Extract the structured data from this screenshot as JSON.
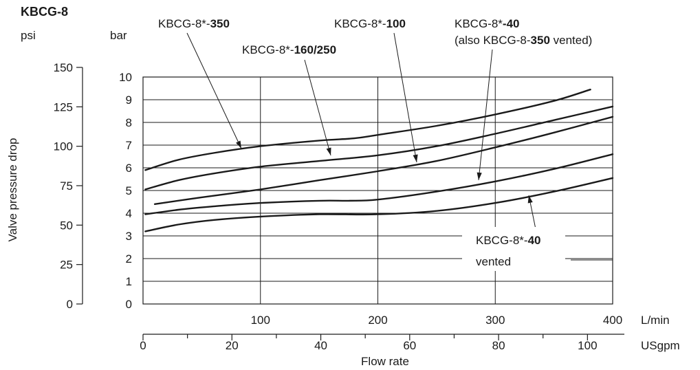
{
  "chart_data": {
    "type": "line",
    "title": "KBCG-8",
    "psi_unit": "psi",
    "bar_unit": "bar",
    "ylabel": "Valve pressure drop",
    "xlabel": "Flow rate",
    "lpm_unit": "L/min",
    "usgpm_unit": "USgpm",
    "xlim_lpm": [
      0,
      400
    ],
    "ylim_bar": [
      0,
      10
    ],
    "usgpm_max": 105.67,
    "grid": true,
    "bar_ticks": [
      "0",
      "1",
      "2",
      "3",
      "4",
      "5",
      "6",
      "7",
      "8",
      "9",
      "10"
    ],
    "psi_ticks": [
      {
        "label": "0",
        "value": 0
      },
      {
        "label": "25",
        "value": 25
      },
      {
        "label": "50",
        "value": 50
      },
      {
        "label": "75",
        "value": 75
      },
      {
        "label": "100",
        "value": 100
      },
      {
        "label": "125",
        "value": 125
      },
      {
        "label": "150",
        "value": 150
      }
    ],
    "lpm_ticks": [
      {
        "label": "100",
        "value": 100
      },
      {
        "label": "200",
        "value": 200
      },
      {
        "label": "300",
        "value": 300
      },
      {
        "label": "400",
        "value": 400
      }
    ],
    "usgpm_ticks": [
      {
        "label": "0",
        "value": 0
      },
      {
        "label": "20",
        "value": 20
      },
      {
        "label": "40",
        "value": 40
      },
      {
        "label": "60",
        "value": 60
      },
      {
        "label": "80",
        "value": 80
      },
      {
        "label": "100",
        "value": 100
      }
    ],
    "series": [
      {
        "name": "KBCG-8*-350",
        "points": [
          [
            2,
            5.9
          ],
          [
            30,
            6.35
          ],
          [
            60,
            6.65
          ],
          [
            100,
            6.95
          ],
          [
            150,
            7.2
          ],
          [
            180,
            7.3
          ],
          [
            200,
            7.45
          ],
          [
            250,
            7.85
          ],
          [
            300,
            8.35
          ],
          [
            350,
            8.95
          ],
          [
            381,
            9.45
          ]
        ]
      },
      {
        "name": "KBCG-8*-160/250",
        "points": [
          [
            2,
            5.05
          ],
          [
            30,
            5.45
          ],
          [
            60,
            5.75
          ],
          [
            100,
            6.05
          ],
          [
            150,
            6.3
          ],
          [
            200,
            6.55
          ],
          [
            250,
            6.95
          ],
          [
            300,
            7.5
          ],
          [
            350,
            8.1
          ],
          [
            400,
            8.7
          ]
        ]
      },
      {
        "name": "KBCG-8*-100",
        "points": [
          [
            10,
            4.4
          ],
          [
            50,
            4.7
          ],
          [
            100,
            5.05
          ],
          [
            150,
            5.45
          ],
          [
            200,
            5.85
          ],
          [
            250,
            6.3
          ],
          [
            300,
            6.9
          ],
          [
            350,
            7.55
          ],
          [
            400,
            8.25
          ]
        ]
      },
      {
        "name": "KBCG-8*-40 (also KBCG-8-350 vented)",
        "points": [
          [
            2,
            3.95
          ],
          [
            30,
            4.15
          ],
          [
            60,
            4.3
          ],
          [
            100,
            4.45
          ],
          [
            150,
            4.55
          ],
          [
            175,
            4.55
          ],
          [
            200,
            4.6
          ],
          [
            250,
            4.95
          ],
          [
            300,
            5.4
          ],
          [
            350,
            5.95
          ],
          [
            400,
            6.6
          ]
        ]
      },
      {
        "name": "KBCG-8*-40 vented",
        "points": [
          [
            2,
            3.2
          ],
          [
            30,
            3.5
          ],
          [
            60,
            3.7
          ],
          [
            100,
            3.85
          ],
          [
            150,
            3.95
          ],
          [
            200,
            3.95
          ],
          [
            250,
            4.1
          ],
          [
            300,
            4.45
          ],
          [
            350,
            4.95
          ],
          [
            400,
            5.55
          ]
        ]
      }
    ]
  },
  "labels": {
    "l350": {
      "text": "KBCG-8*-",
      "bold": "350"
    },
    "l160": {
      "text": "KBCG-8*-",
      "bold": "160/250"
    },
    "l100": {
      "text": "KBCG-8*-",
      "bold": "100"
    },
    "l40": {
      "text": "KBCG-8*",
      "bold": "-40"
    },
    "l40_also_a": "(also KBCG-8-",
    "l40_also_b": "350",
    "l40_also_c": " vented)",
    "lvent": {
      "text": "KBCG-8*-",
      "bold": "40"
    },
    "lvent_line2": "vented"
  }
}
